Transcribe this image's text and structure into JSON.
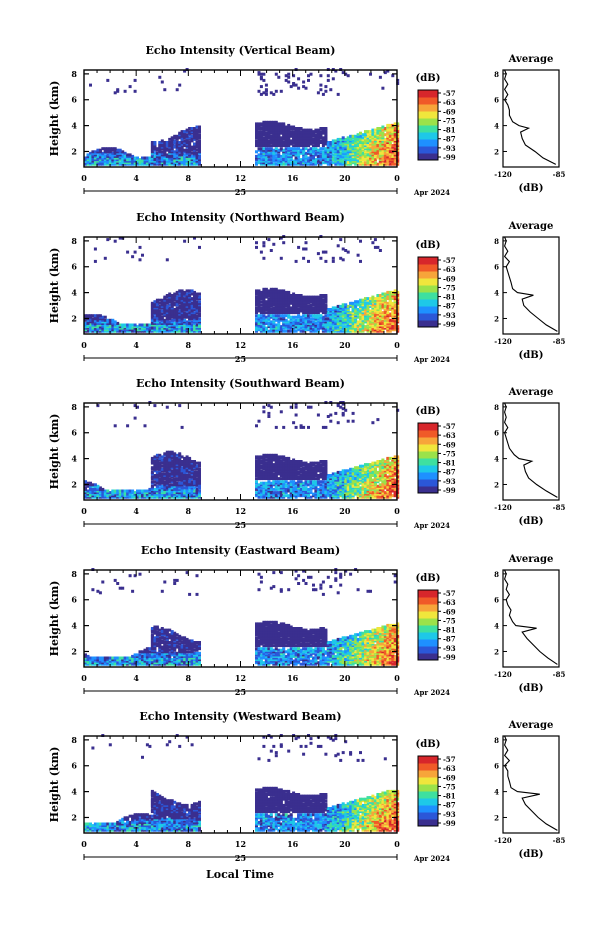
{
  "figure": {
    "xlabel": "Local Time",
    "date_label": "Apr 2024"
  },
  "colorbar": {
    "unit": "(dB)",
    "tick_labels": [
      "-57",
      "-63",
      "-69",
      "-75",
      "-81",
      "-87",
      "-93",
      "-99"
    ],
    "colors": [
      "#3a2f8f",
      "#2b57d8",
      "#1e90ff",
      "#1ec8e8",
      "#3ee0a0",
      "#9be24a",
      "#f0e63c",
      "#f7a53a",
      "#f05a28",
      "#d7262b"
    ]
  },
  "chart_data": [
    {
      "type": "heatmap",
      "title": "Echo Intensity (Vertical Beam)",
      "ylabel": "Height (km)",
      "x_ticks": [
        "0",
        "4",
        "8",
        "12",
        "16",
        "20",
        "0"
      ],
      "day_label": "25",
      "y_ticks": [
        "2",
        "4",
        "6",
        "8"
      ],
      "ylim": [
        0.8,
        8.3
      ],
      "xlim": [
        0,
        24
      ],
      "color_range_db": [
        -99,
        -57
      ],
      "average": {
        "title": "Average",
        "xlabel": "(dB)",
        "x_ticks": [
          "-120",
          "-85"
        ],
        "y_ticks": [
          "2",
          "4",
          "6",
          "8"
        ],
        "xlim": [
          -120,
          -85
        ],
        "ylim": [
          0.8,
          8.3
        ],
        "height_km": [
          1.0,
          1.5,
          2.0,
          2.5,
          3.0,
          3.5,
          3.8,
          4.0,
          4.3,
          4.8,
          5.2,
          5.6,
          6.0,
          6.4,
          6.8,
          7.2,
          7.6,
          8.0,
          8.3
        ],
        "db": [
          -87,
          -95,
          -100,
          -106,
          -108,
          -109,
          -104,
          -110,
          -114,
          -116,
          -116,
          -117,
          -119,
          -117,
          -119,
          -117,
          -119,
          -118,
          -119
        ]
      }
    },
    {
      "type": "heatmap",
      "title": "Echo Intensity (Northward Beam)",
      "ylabel": "Height (km)",
      "x_ticks": [
        "0",
        "4",
        "8",
        "12",
        "16",
        "20",
        "0"
      ],
      "day_label": "25",
      "y_ticks": [
        "2",
        "4",
        "6",
        "8"
      ],
      "ylim": [
        0.8,
        8.3
      ],
      "xlim": [
        0,
        24
      ],
      "color_range_db": [
        -99,
        -57
      ],
      "average": {
        "title": "Average",
        "xlabel": "(dB)",
        "x_ticks": [
          "-120",
          "-85"
        ],
        "y_ticks": [
          "2",
          "4",
          "6",
          "8"
        ],
        "xlim": [
          -120,
          -85
        ],
        "ylim": [
          0.8,
          8.3
        ],
        "height_km": [
          1.0,
          1.5,
          2.0,
          2.5,
          3.0,
          3.5,
          3.8,
          4.0,
          4.3,
          4.8,
          5.2,
          5.6,
          6.0,
          6.4,
          6.8,
          7.2,
          7.6,
          8.0,
          8.3
        ],
        "db": [
          -86,
          -93,
          -98,
          -103,
          -107,
          -108,
          -101,
          -111,
          -114,
          -115,
          -116,
          -117,
          -118,
          -116,
          -119,
          -117,
          -119,
          -118,
          -119
        ]
      }
    },
    {
      "type": "heatmap",
      "title": "Echo Intensity (Southward Beam)",
      "ylabel": "Height (km)",
      "x_ticks": [
        "0",
        "4",
        "8",
        "12",
        "16",
        "20",
        "0"
      ],
      "day_label": "25",
      "y_ticks": [
        "2",
        "4",
        "6",
        "8"
      ],
      "ylim": [
        0.8,
        8.3
      ],
      "xlim": [
        0,
        24
      ],
      "color_range_db": [
        -99,
        -57
      ],
      "average": {
        "title": "Average",
        "xlabel": "(dB)",
        "x_ticks": [
          "-120",
          "-85"
        ],
        "y_ticks": [
          "2",
          "4",
          "6",
          "8"
        ],
        "xlim": [
          -120,
          -85
        ],
        "ylim": [
          0.8,
          8.3
        ],
        "height_km": [
          1.0,
          1.5,
          2.0,
          2.5,
          3.0,
          3.5,
          3.8,
          4.0,
          4.3,
          4.8,
          5.2,
          5.6,
          6.0,
          6.4,
          6.8,
          7.2,
          7.6,
          8.0,
          8.3
        ],
        "db": [
          -86,
          -93,
          -99,
          -104,
          -106,
          -107,
          -102,
          -110,
          -113,
          -116,
          -117,
          -118,
          -119,
          -117,
          -119,
          -118,
          -119,
          -118,
          -119
        ]
      }
    },
    {
      "type": "heatmap",
      "title": "Echo Intensity (Eastward Beam)",
      "ylabel": "Height (km)",
      "x_ticks": [
        "0",
        "4",
        "8",
        "12",
        "16",
        "20",
        "0"
      ],
      "day_label": "25",
      "y_ticks": [
        "2",
        "4",
        "6",
        "8"
      ],
      "ylim": [
        0.8,
        8.3
      ],
      "xlim": [
        0,
        24
      ],
      "color_range_db": [
        -99,
        -57
      ],
      "average": {
        "title": "Average",
        "xlabel": "(dB)",
        "x_ticks": [
          "-120",
          "-85"
        ],
        "y_ticks": [
          "2",
          "4",
          "6",
          "8"
        ],
        "xlim": [
          -120,
          -85
        ],
        "ylim": [
          0.8,
          8.3
        ],
        "height_km": [
          1.0,
          1.5,
          2.0,
          2.5,
          3.0,
          3.5,
          3.8,
          4.0,
          4.3,
          4.8,
          5.2,
          5.6,
          6.0,
          6.4,
          6.8,
          7.2,
          7.6,
          8.0,
          8.3
        ],
        "db": [
          -86,
          -92,
          -97,
          -101,
          -105,
          -108,
          -99,
          -112,
          -114,
          -116,
          -115,
          -117,
          -118,
          -116,
          -118,
          -117,
          -119,
          -118,
          -119
        ]
      }
    },
    {
      "type": "heatmap",
      "title": "Echo Intensity (Westward Beam)",
      "ylabel": "Height (km)",
      "x_ticks": [
        "0",
        "4",
        "8",
        "12",
        "16",
        "20",
        "0"
      ],
      "day_label": "25",
      "y_ticks": [
        "2",
        "4",
        "6",
        "8"
      ],
      "ylim": [
        0.8,
        8.3
      ],
      "xlim": [
        0,
        24
      ],
      "color_range_db": [
        -99,
        -57
      ],
      "average": {
        "title": "Average",
        "xlabel": "(dB)",
        "x_ticks": [
          "-120",
          "-85"
        ],
        "y_ticks": [
          "2",
          "4",
          "6",
          "8"
        ],
        "xlim": [
          -120,
          -85
        ],
        "ylim": [
          0.8,
          8.3
        ],
        "height_km": [
          1.0,
          1.5,
          2.0,
          2.5,
          3.0,
          3.5,
          3.8,
          4.0,
          4.3,
          4.8,
          5.2,
          5.6,
          6.0,
          6.4,
          6.8,
          7.2,
          7.6,
          8.0,
          8.3
        ],
        "db": [
          -86,
          -93,
          -98,
          -102,
          -106,
          -108,
          -97,
          -111,
          -115,
          -116,
          -117,
          -117,
          -119,
          -116,
          -119,
          -117,
          -119,
          -118,
          -119
        ]
      }
    }
  ]
}
